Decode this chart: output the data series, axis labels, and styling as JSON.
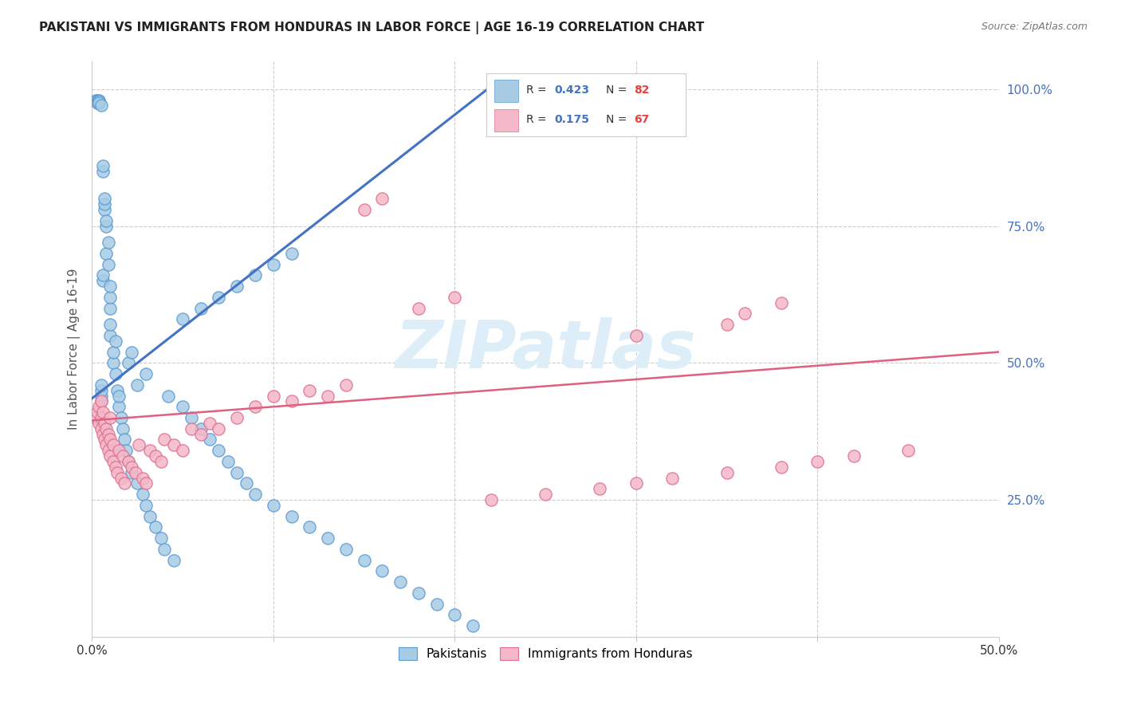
{
  "title": "PAKISTANI VS IMMIGRANTS FROM HONDURAS IN LABOR FORCE | AGE 16-19 CORRELATION CHART",
  "source": "Source: ZipAtlas.com",
  "ylabel": "In Labor Force | Age 16-19",
  "xmin": 0.0,
  "xmax": 0.5,
  "ymin": 0.0,
  "ymax": 1.05,
  "blue_color": "#a8cce4",
  "pink_color": "#f4b8c8",
  "blue_line_color": "#4472c4",
  "pink_line_color": "#e06080",
  "blue_scatter_edge": "#5b9bd5",
  "pink_scatter_edge": "#e07090",
  "watermark_color": "#ddeef8",
  "right_axis_color": "#4472c4",
  "legend_R1": "0.423",
  "legend_N1": "82",
  "legend_R2": "0.175",
  "legend_N2": "67",
  "blue_line_x0": 0.0,
  "blue_line_y0": 0.435,
  "blue_line_x1": 0.22,
  "blue_line_y1": 1.005,
  "pink_line_x0": 0.0,
  "pink_line_y0": 0.395,
  "pink_line_x1": 0.5,
  "pink_line_y1": 0.52,
  "pak_x": [
    0.002,
    0.003,
    0.003,
    0.004,
    0.004,
    0.004,
    0.005,
    0.005,
    0.005,
    0.005,
    0.005,
    0.006,
    0.006,
    0.006,
    0.006,
    0.007,
    0.007,
    0.007,
    0.008,
    0.008,
    0.008,
    0.009,
    0.009,
    0.01,
    0.01,
    0.01,
    0.01,
    0.01,
    0.012,
    0.012,
    0.013,
    0.013,
    0.014,
    0.015,
    0.015,
    0.016,
    0.017,
    0.018,
    0.019,
    0.02,
    0.02,
    0.022,
    0.022,
    0.025,
    0.025,
    0.028,
    0.03,
    0.03,
    0.032,
    0.035,
    0.038,
    0.04,
    0.042,
    0.045,
    0.05,
    0.055,
    0.06,
    0.065,
    0.07,
    0.075,
    0.08,
    0.085,
    0.09,
    0.1,
    0.11,
    0.12,
    0.13,
    0.14,
    0.15,
    0.16,
    0.17,
    0.18,
    0.19,
    0.2,
    0.21,
    0.05,
    0.06,
    0.07,
    0.08,
    0.09,
    0.1,
    0.11
  ],
  "pak_y": [
    0.98,
    0.98,
    0.975,
    0.98,
    0.978,
    0.975,
    0.97,
    0.43,
    0.44,
    0.45,
    0.46,
    0.85,
    0.86,
    0.65,
    0.66,
    0.78,
    0.79,
    0.8,
    0.75,
    0.76,
    0.7,
    0.68,
    0.72,
    0.6,
    0.62,
    0.64,
    0.55,
    0.57,
    0.5,
    0.52,
    0.48,
    0.54,
    0.45,
    0.42,
    0.44,
    0.4,
    0.38,
    0.36,
    0.34,
    0.32,
    0.5,
    0.3,
    0.52,
    0.28,
    0.46,
    0.26,
    0.24,
    0.48,
    0.22,
    0.2,
    0.18,
    0.16,
    0.44,
    0.14,
    0.42,
    0.4,
    0.38,
    0.36,
    0.34,
    0.32,
    0.3,
    0.28,
    0.26,
    0.24,
    0.22,
    0.2,
    0.18,
    0.16,
    0.14,
    0.12,
    0.1,
    0.08,
    0.06,
    0.04,
    0.02,
    0.58,
    0.6,
    0.62,
    0.64,
    0.66,
    0.68,
    0.7
  ],
  "hon_x": [
    0.002,
    0.003,
    0.004,
    0.004,
    0.005,
    0.005,
    0.005,
    0.006,
    0.006,
    0.007,
    0.007,
    0.008,
    0.008,
    0.009,
    0.009,
    0.01,
    0.01,
    0.01,
    0.012,
    0.012,
    0.013,
    0.014,
    0.015,
    0.016,
    0.017,
    0.018,
    0.02,
    0.022,
    0.024,
    0.026,
    0.028,
    0.03,
    0.032,
    0.035,
    0.038,
    0.04,
    0.045,
    0.05,
    0.055,
    0.06,
    0.065,
    0.07,
    0.08,
    0.09,
    0.1,
    0.11,
    0.12,
    0.13,
    0.14,
    0.15,
    0.16,
    0.18,
    0.2,
    0.22,
    0.25,
    0.28,
    0.3,
    0.32,
    0.35,
    0.38,
    0.4,
    0.42,
    0.45,
    0.3,
    0.35,
    0.36,
    0.38
  ],
  "hon_y": [
    0.4,
    0.41,
    0.39,
    0.42,
    0.38,
    0.4,
    0.43,
    0.37,
    0.41,
    0.36,
    0.39,
    0.35,
    0.38,
    0.34,
    0.37,
    0.33,
    0.36,
    0.4,
    0.32,
    0.35,
    0.31,
    0.3,
    0.34,
    0.29,
    0.33,
    0.28,
    0.32,
    0.31,
    0.3,
    0.35,
    0.29,
    0.28,
    0.34,
    0.33,
    0.32,
    0.36,
    0.35,
    0.34,
    0.38,
    0.37,
    0.39,
    0.38,
    0.4,
    0.42,
    0.44,
    0.43,
    0.45,
    0.44,
    0.46,
    0.78,
    0.8,
    0.6,
    0.62,
    0.25,
    0.26,
    0.27,
    0.28,
    0.29,
    0.3,
    0.31,
    0.32,
    0.33,
    0.34,
    0.55,
    0.57,
    0.59,
    0.61
  ]
}
